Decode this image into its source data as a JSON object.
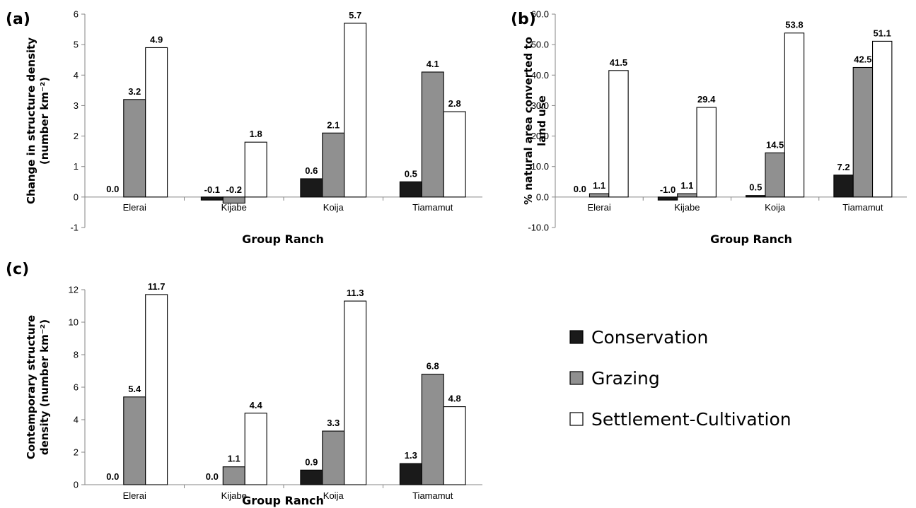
{
  "legend": [
    {
      "name": "Conservation",
      "color": "#1a1a1a"
    },
    {
      "name": "Grazing",
      "color": "#909090"
    },
    {
      "name": "Settlement-Cultivation",
      "color": "#ffffff"
    }
  ],
  "chart_data": [
    {
      "type": "bar",
      "panel": "(a)",
      "title": "",
      "xlabel": "Group Ranch",
      "ylabel": [
        "Change in structure density",
        "(number km⁻²)"
      ],
      "categories": [
        "Elerai",
        "Kijabe",
        "Koija",
        "Tiamamut"
      ],
      "ylim": [
        -1,
        6
      ],
      "yticks": [
        -1,
        0,
        1,
        2,
        3,
        4,
        5,
        6
      ],
      "tick_decimals": 0,
      "series": [
        {
          "name": "Conservation",
          "values": [
            0.0,
            -0.1,
            0.6,
            0.5
          ],
          "labels": [
            "0.0",
            "-0.1",
            "0.6",
            "0.5"
          ]
        },
        {
          "name": "Grazing",
          "values": [
            3.2,
            -0.2,
            2.1,
            4.1
          ],
          "labels": [
            "3.2",
            "-0.2",
            "2.1",
            "4.1"
          ]
        },
        {
          "name": "Settlement-Cultivation",
          "values": [
            4.9,
            1.8,
            5.7,
            2.8
          ],
          "labels": [
            "4.9",
            "1.8",
            "5.7",
            "2.8"
          ]
        }
      ]
    },
    {
      "type": "bar",
      "panel": "(b)",
      "title": "",
      "xlabel": "Group Ranch",
      "ylabel": [
        "% natural area converted to",
        "land use"
      ],
      "categories": [
        "Elerai",
        "Kijabe",
        "Koija",
        "Tiamamut"
      ],
      "ylim": [
        -10,
        60
      ],
      "yticks": [
        -10,
        0,
        10,
        20,
        30,
        40,
        50,
        60
      ],
      "tick_decimals": 1,
      "series": [
        {
          "name": "Conservation",
          "values": [
            0.0,
            -1.0,
            0.5,
            7.2
          ],
          "labels": [
            "0.0",
            "-1.0",
            "0.5",
            "7.2"
          ]
        },
        {
          "name": "Grazing",
          "values": [
            1.1,
            1.1,
            14.5,
            42.5
          ],
          "labels": [
            "1.1",
            "1.1",
            "14.5",
            "42.5"
          ]
        },
        {
          "name": "Settlement-Cultivation",
          "values": [
            41.5,
            29.4,
            53.8,
            51.1
          ],
          "labels": [
            "41.5",
            "29.4",
            "53.8",
            "51.1"
          ]
        }
      ]
    },
    {
      "type": "bar",
      "panel": "(c)",
      "title": "",
      "xlabel": "Group Ranch",
      "ylabel": [
        "Contemporary structure",
        "density (number km⁻²)"
      ],
      "categories": [
        "Elerai",
        "Kijabe",
        "Koija",
        "Tiamamut"
      ],
      "ylim": [
        0,
        12
      ],
      "yticks": [
        0,
        2,
        4,
        6,
        8,
        10,
        12
      ],
      "tick_decimals": 0,
      "series": [
        {
          "name": "Conservation",
          "values": [
            0.0,
            0.0,
            0.9,
            1.3
          ],
          "labels": [
            "0.0",
            "0.0",
            "0.9",
            "1.3"
          ]
        },
        {
          "name": "Grazing",
          "values": [
            5.4,
            1.1,
            3.3,
            6.8
          ],
          "labels": [
            "5.4",
            "1.1",
            "3.3",
            "6.8"
          ]
        },
        {
          "name": "Settlement-Cultivation",
          "values": [
            11.7,
            4.4,
            11.3,
            4.8
          ],
          "labels": [
            "11.7",
            "4.4",
            "11.3",
            "4.8"
          ]
        }
      ]
    }
  ]
}
